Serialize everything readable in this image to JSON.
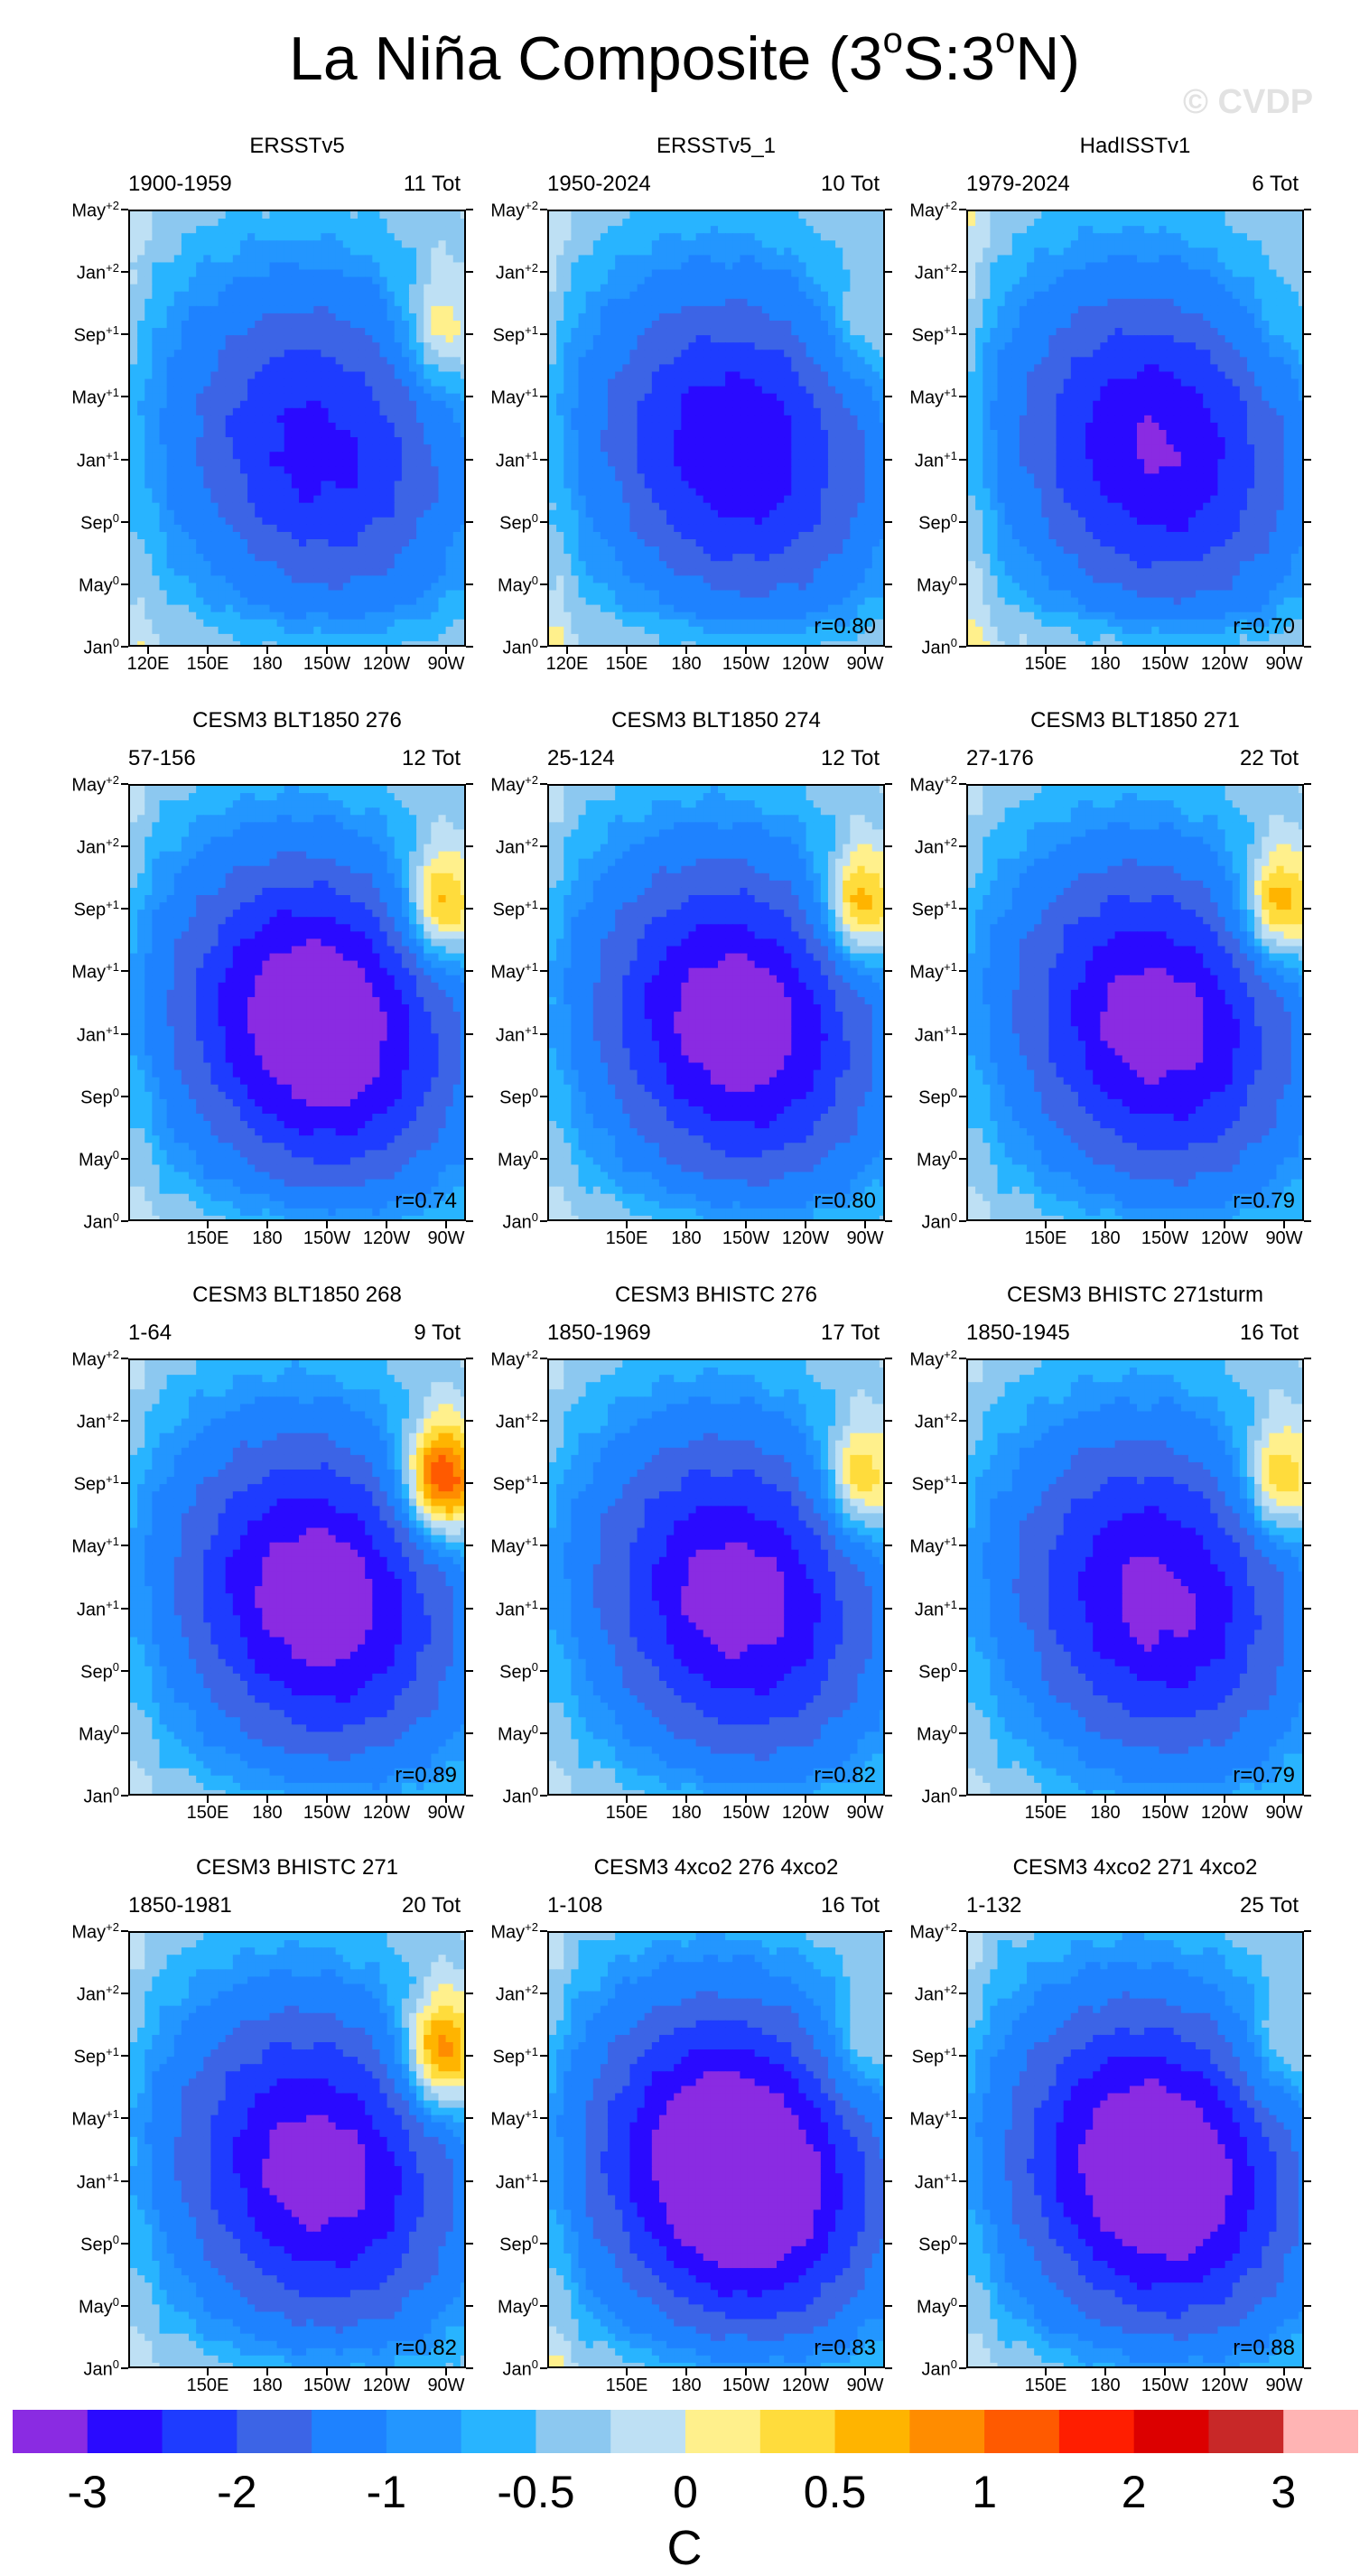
{
  "title_main": "La Niña Composite (3",
  "title_deg1": "o",
  "title_mid": "S:3",
  "title_deg2": "o",
  "title_end": "N)",
  "watermark": "© CVDP",
  "y_axis_labels": [
    {
      "base": "May",
      "sup": "+2"
    },
    {
      "base": "Jan",
      "sup": "+2"
    },
    {
      "base": "Sep",
      "sup": "+1"
    },
    {
      "base": "May",
      "sup": "+1"
    },
    {
      "base": "Jan",
      "sup": "+1"
    },
    {
      "base": "Sep",
      "sup": "0"
    },
    {
      "base": "May",
      "sup": "0"
    },
    {
      "base": "Jan",
      "sup": "0"
    }
  ],
  "x_axis_labels_full": [
    "120E",
    "150E",
    "180",
    "150W",
    "120W",
    "90W"
  ],
  "x_axis_labels_short": [
    "150E",
    "180",
    "150W",
    "120W",
    "90W"
  ],
  "colors": [
    "#8a2be2",
    "#2a0aff",
    "#1e3cff",
    "#3c64e6",
    "#1e82ff",
    "#2396ff",
    "#28b4ff",
    "#8cc8f0",
    "#bee0f4",
    "#fff08c",
    "#ffdc3c",
    "#ffb400",
    "#ff8c00",
    "#ff5a00",
    "#ff1e00",
    "#dc0000",
    "#c82828",
    "#ffb4b4"
  ],
  "colorbar_labels": [
    "-3",
    "-2",
    "-1",
    "-0.5",
    "0",
    "0.5",
    "1",
    "2",
    "3"
  ],
  "units": "C",
  "chart_data": [
    {
      "type": "heatmap",
      "title": "ERSSTv5",
      "period": "1900-1959",
      "count": "11 Tot",
      "r": "",
      "xlabels": "full",
      "intensity": 0.8,
      "warm_ne": 0.4,
      "warm_sw": 0.3
    },
    {
      "type": "heatmap",
      "title": "ERSSTv5_1",
      "period": "1950-2024",
      "count": "10 Tot",
      "r": "r=0.80",
      "xlabels": "full",
      "intensity": 0.9,
      "warm_ne": 0.2,
      "warm_sw": 0.4
    },
    {
      "type": "heatmap",
      "title": "HadISSTv1",
      "period": "1979-2024",
      "count": "6 Tot",
      "r": "r=0.70",
      "xlabels": "short",
      "intensity": 0.95,
      "warm_ne": 0.1,
      "warm_sw": 0.5
    },
    {
      "type": "heatmap",
      "title": "CESM3 BLT1850 276",
      "period": "57-156",
      "count": "12 Tot",
      "r": "r=0.74",
      "xlabels": "short",
      "intensity": 1.2,
      "warm_ne": 0.7,
      "warm_sw": 0.3
    },
    {
      "type": "heatmap",
      "title": "CESM3 BLT1850 274",
      "period": "25-124",
      "count": "12 Tot",
      "r": "r=0.80",
      "xlabels": "short",
      "intensity": 1.1,
      "warm_ne": 0.7,
      "warm_sw": 0.3
    },
    {
      "type": "heatmap",
      "title": "CESM3 BLT1850 271",
      "period": "27-176",
      "count": "22 Tot",
      "r": "r=0.79",
      "xlabels": "short",
      "intensity": 1.05,
      "warm_ne": 0.7,
      "warm_sw": 0.2
    },
    {
      "type": "heatmap",
      "title": "CESM3 BLT1850 268",
      "period": "1-64",
      "count": "9 Tot",
      "r": "r=0.89",
      "xlabels": "short",
      "intensity": 1.1,
      "warm_ne": 1.0,
      "warm_sw": 0.2
    },
    {
      "type": "heatmap",
      "title": "CESM3 BHISTC 276",
      "period": "1850-1969",
      "count": "17 Tot",
      "r": "r=0.82",
      "xlabels": "short",
      "intensity": 1.05,
      "warm_ne": 0.6,
      "warm_sw": 0.2
    },
    {
      "type": "heatmap",
      "title": "CESM3 BHISTC 271sturm",
      "period": "1850-1945",
      "count": "16 Tot",
      "r": "r=0.79",
      "xlabels": "short",
      "intensity": 1.0,
      "warm_ne": 0.6,
      "warm_sw": 0.1
    },
    {
      "type": "heatmap",
      "title": "CESM3 BHISTC 271",
      "period": "1850-1981",
      "count": "20 Tot",
      "r": "r=0.82",
      "xlabels": "short",
      "intensity": 1.05,
      "warm_ne": 0.8,
      "warm_sw": 0.3
    },
    {
      "type": "heatmap",
      "title": "CESM3 4xco2 276 4xco2",
      "period": "1-108",
      "count": "16 Tot",
      "r": "r=0.83",
      "xlabels": "short",
      "intensity": 1.35,
      "warm_ne": 0.3,
      "warm_sw": 0.4
    },
    {
      "type": "heatmap",
      "title": "CESM3 4xco2 271 4xco2",
      "period": "1-132",
      "count": "25 Tot",
      "r": "r=0.88",
      "xlabels": "short",
      "intensity": 1.25,
      "warm_ne": 0.3,
      "warm_sw": 0.3
    }
  ]
}
